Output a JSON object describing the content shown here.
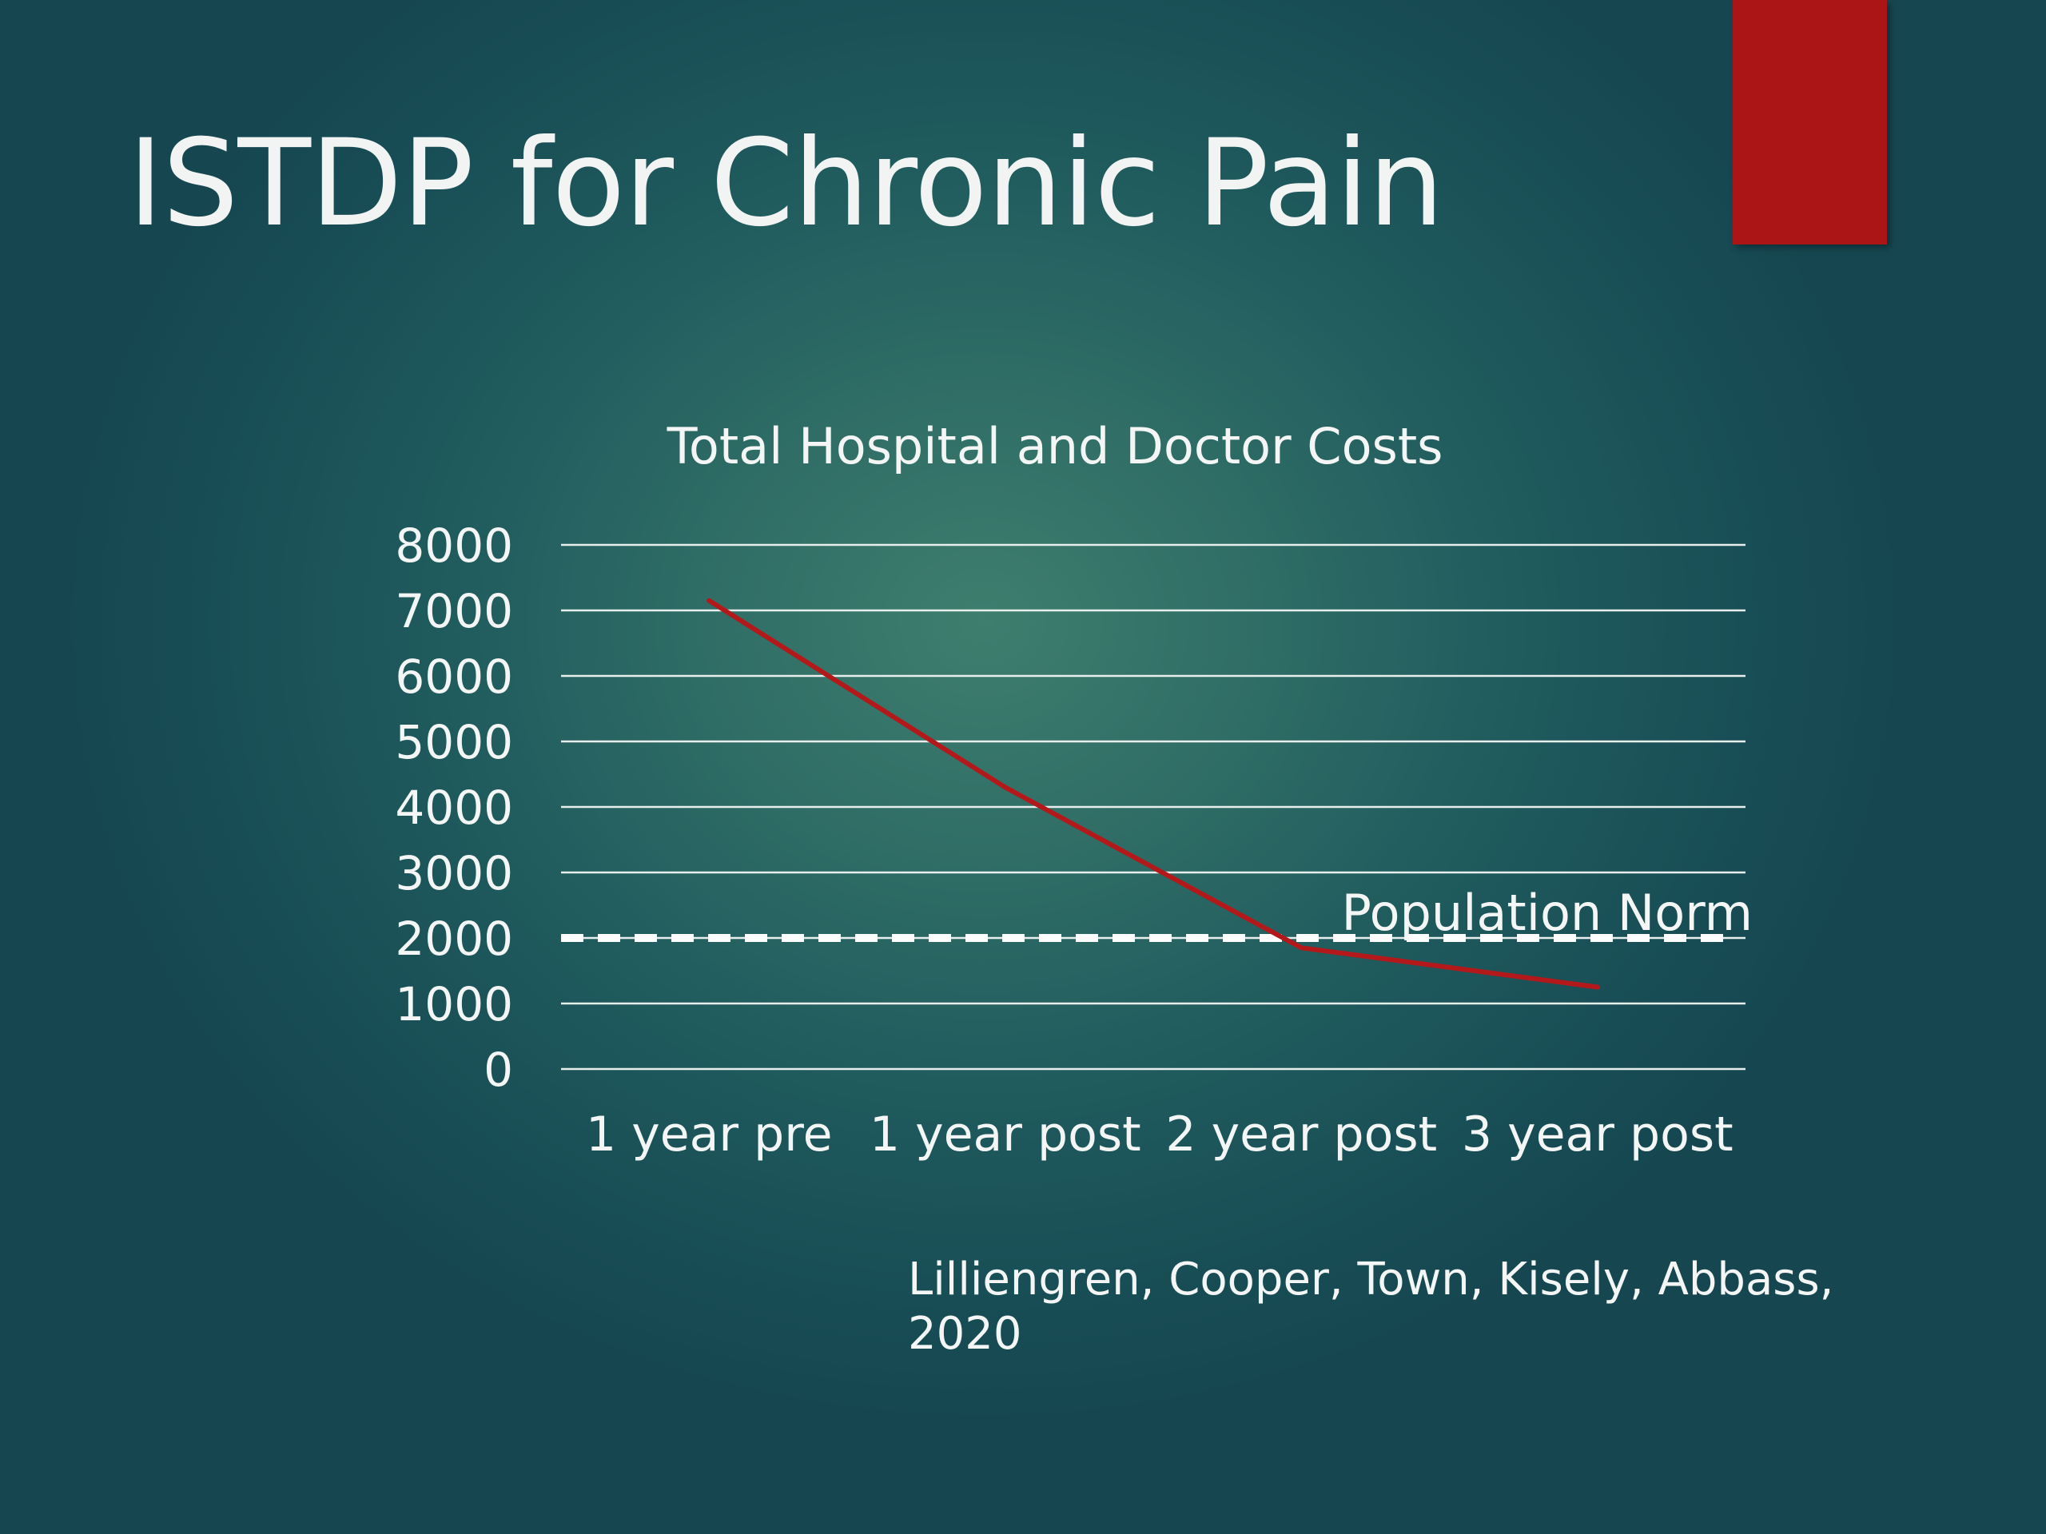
{
  "slide": {
    "title": "ISTDP for Chronic Pain",
    "citation": "Lilliengren, Cooper, Town, Kisely, Abbass, 2020",
    "colors": {
      "accent_block": "#ab1516",
      "line": "#b3191b",
      "text": "#f4f6f5"
    },
    "icons": [
      "red-accent-block"
    ]
  },
  "chart_data": {
    "type": "line",
    "title": "Total Hospital and Doctor Costs",
    "xlabel": "",
    "ylabel": "",
    "categories": [
      "1 year pre",
      "1 year post",
      "2 year post",
      "3 year post"
    ],
    "series": [
      {
        "values": [
          7150,
          4300,
          1850,
          1250
        ]
      }
    ],
    "reference_line": {
      "label": "Population Norm",
      "value": 2000,
      "style": "dashed"
    },
    "ylim": [
      0,
      8000
    ],
    "yticks": [
      "0",
      "1000",
      "2000",
      "3000",
      "4000",
      "5000",
      "6000",
      "7000",
      "8000"
    ],
    "grid": true,
    "legend": "none"
  }
}
